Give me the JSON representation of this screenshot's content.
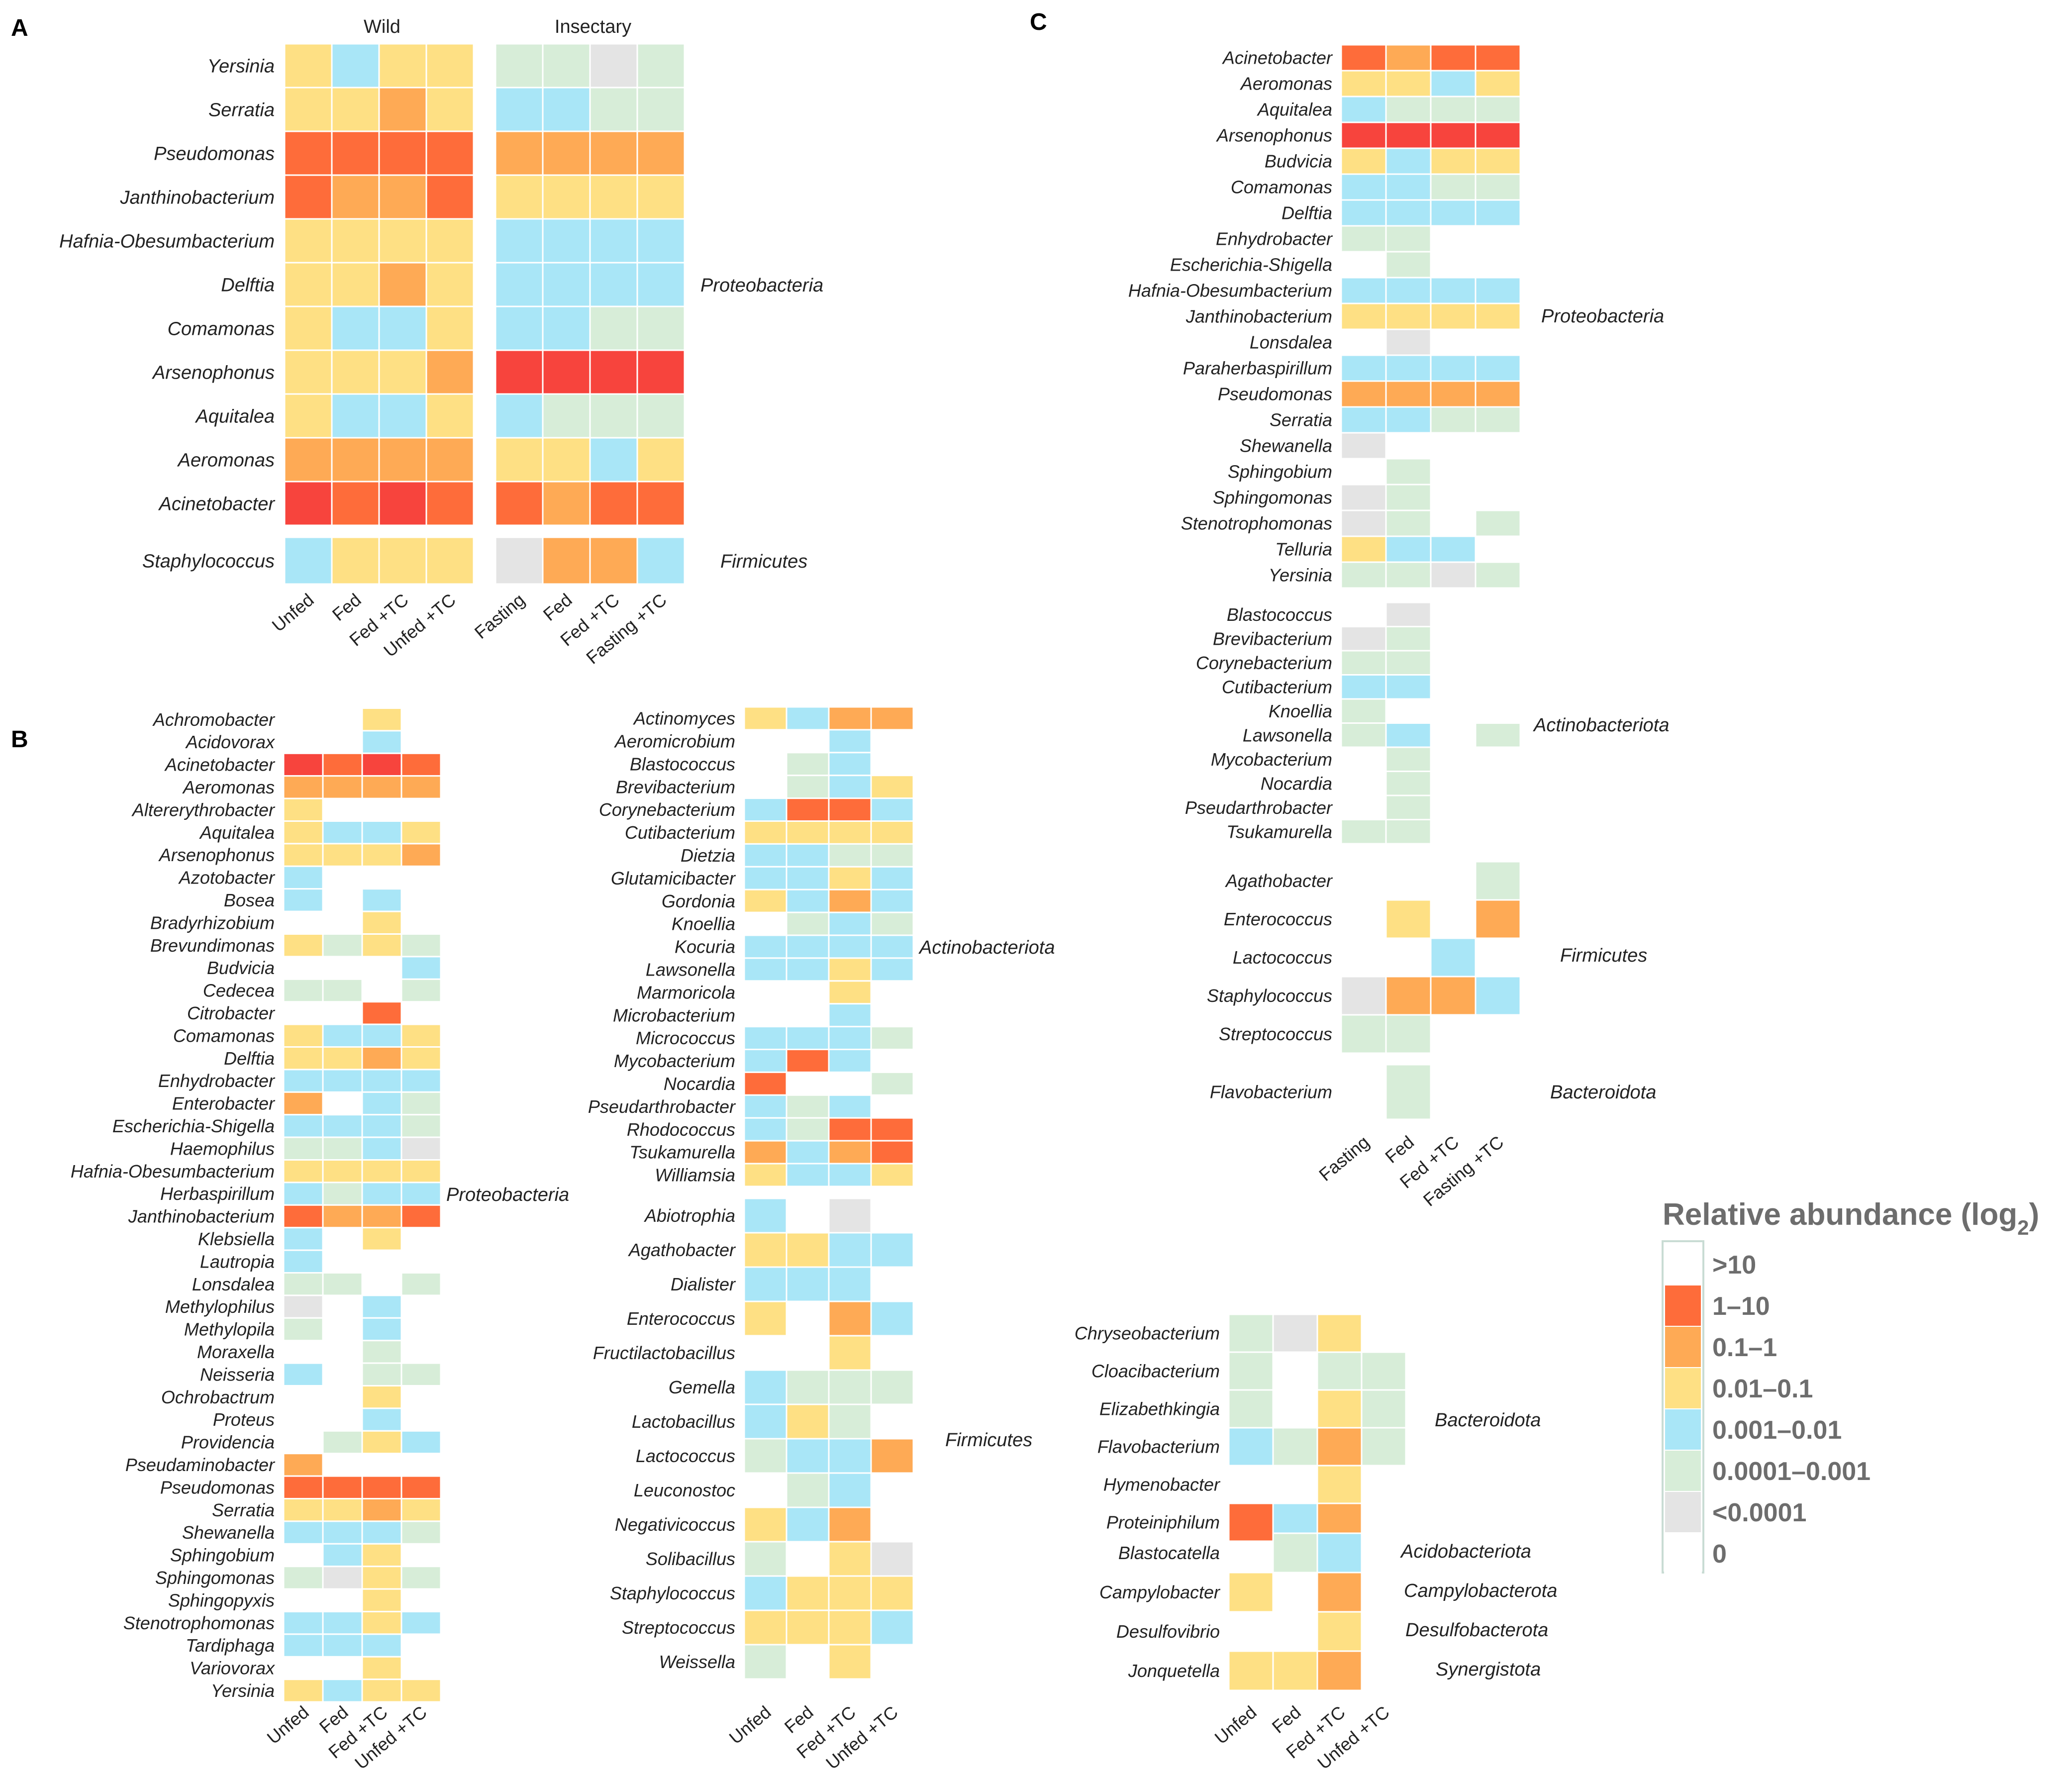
{
  "colors": {
    "gt10": "#ffffff",
    "c1_10": "#f7443d",
    "c01_1": "#fe6c3a",
    "c001_01": "#feaa55",
    "c0001_001": "#fee084",
    "c00001_0001": "#a9e6f7",
    "lt00001": "#d7edd8",
    "zero": "#e4e4e4",
    "empty": "#ffffff"
  },
  "chart_data": [
    {
      "panel": "A",
      "type": "heatmap",
      "groups": [
        "Wild",
        "Insectary"
      ],
      "columns": [
        [
          "Unfed",
          "Fed",
          "Fed +TC",
          "Unfed +TC"
        ],
        [
          "Fasting",
          "Fed",
          "Fed +TC",
          "Fasting +TC"
        ]
      ],
      "rows": [
        "Yersinia",
        "Serratia",
        "Pseudomonas",
        "Janthinobacterium",
        "Hafnia-Obesumbacterium",
        "Delftia",
        "Comamonas",
        "Arsenophonus",
        "Aquitalea",
        "Aeromonas",
        "Acinetobacter",
        "Staphylococcus"
      ],
      "row_groups": [
        {
          "label": "Proteobacteria",
          "rows": [
            0,
            10
          ]
        },
        {
          "label": "Firmicutes",
          "rows": [
            11,
            11
          ]
        }
      ],
      "values": [
        [
          4,
          5,
          4,
          4,
          6,
          6,
          7,
          6
        ],
        [
          4,
          4,
          3,
          4,
          5,
          5,
          6,
          6
        ],
        [
          2,
          2,
          2,
          2,
          3,
          3,
          3,
          3
        ],
        [
          2,
          3,
          3,
          2,
          4,
          4,
          4,
          4
        ],
        [
          4,
          4,
          4,
          4,
          5,
          5,
          5,
          5
        ],
        [
          4,
          4,
          3,
          4,
          5,
          5,
          5,
          5
        ],
        [
          4,
          5,
          5,
          4,
          5,
          5,
          6,
          6
        ],
        [
          4,
          4,
          4,
          3,
          1,
          1,
          1,
          1
        ],
        [
          4,
          5,
          5,
          4,
          5,
          6,
          6,
          6
        ],
        [
          3,
          3,
          3,
          3,
          4,
          4,
          5,
          4
        ],
        [
          1,
          2,
          1,
          2,
          2,
          3,
          2,
          2
        ],
        [
          5,
          4,
          4,
          4,
          7,
          3,
          3,
          5
        ]
      ]
    },
    {
      "panel": "B-left",
      "type": "heatmap",
      "columns": [
        "Unfed",
        "Fed",
        "Fed +TC",
        "Unfed +TC"
      ],
      "rows": [
        "Achromobacter",
        "Acidovorax",
        "Acinetobacter",
        "Aeromonas",
        "Altererythrobacter",
        "Aquitalea",
        "Arsenophonus",
        "Azotobacter",
        "Bosea",
        "Bradyrhizobium",
        "Brevundimonas",
        "Budvicia",
        "Cedecea",
        "Citrobacter",
        "Comamonas",
        "Delftia",
        "Enhydrobacter",
        "Enterobacter",
        "Escherichia-Shigella",
        "Haemophilus",
        "Hafnia-Obesumbacterium",
        "Herbaspirillum",
        "Janthinobacterium",
        "Klebsiella",
        "Lautropia",
        "Lonsdalea",
        "Methylophilus",
        "Methylopila",
        "Moraxella",
        "Neisseria",
        "Ochrobactrum",
        "Proteus",
        "Providencia",
        "Pseudaminobacter",
        "Pseudomonas",
        "Serratia",
        "Shewanella",
        "Sphingobium",
        "Sphingomonas",
        "Sphingopyxis",
        "Stenotrophomonas",
        "Tardiphaga",
        "Variovorax",
        "Yersinia"
      ],
      "row_groups": [
        {
          "label": "Proteobacteria",
          "rows": [
            0,
            43
          ]
        }
      ],
      "values": [
        [
          0,
          0,
          4,
          0
        ],
        [
          0,
          0,
          5,
          0
        ],
        [
          1,
          2,
          1,
          2
        ],
        [
          3,
          3,
          3,
          3
        ],
        [
          4,
          0,
          0,
          0
        ],
        [
          4,
          5,
          5,
          4
        ],
        [
          4,
          4,
          4,
          3
        ],
        [
          5,
          0,
          0,
          0
        ],
        [
          5,
          0,
          5,
          0
        ],
        [
          0,
          0,
          4,
          0
        ],
        [
          4,
          6,
          4,
          6
        ],
        [
          0,
          0,
          0,
          5
        ],
        [
          6,
          6,
          0,
          6
        ],
        [
          0,
          0,
          2,
          0
        ],
        [
          4,
          5,
          5,
          4
        ],
        [
          4,
          4,
          3,
          4
        ],
        [
          5,
          5,
          5,
          5
        ],
        [
          3,
          0,
          5,
          6
        ],
        [
          5,
          5,
          5,
          6
        ],
        [
          6,
          6,
          5,
          7
        ],
        [
          4,
          4,
          4,
          4
        ],
        [
          5,
          6,
          5,
          5
        ],
        [
          2,
          3,
          3,
          2
        ],
        [
          5,
          0,
          4,
          0
        ],
        [
          5,
          0,
          0,
          0
        ],
        [
          6,
          6,
          0,
          6
        ],
        [
          7,
          0,
          5,
          0
        ],
        [
          6,
          0,
          5,
          0
        ],
        [
          0,
          0,
          6,
          0
        ],
        [
          5,
          0,
          6,
          6
        ],
        [
          0,
          0,
          4,
          0
        ],
        [
          0,
          0,
          5,
          0
        ],
        [
          0,
          6,
          4,
          5
        ],
        [
          3,
          0,
          0,
          0
        ],
        [
          2,
          2,
          2,
          2
        ],
        [
          4,
          4,
          3,
          4
        ],
        [
          5,
          5,
          5,
          6
        ],
        [
          0,
          5,
          4,
          0
        ],
        [
          6,
          7,
          4,
          6
        ],
        [
          0,
          0,
          4,
          0
        ],
        [
          5,
          5,
          4,
          5
        ],
        [
          5,
          5,
          5,
          0
        ],
        [
          0,
          0,
          4,
          0
        ],
        [
          4,
          5,
          4,
          4
        ]
      ]
    },
    {
      "panel": "B-right",
      "type": "heatmap",
      "columns": [
        "Unfed",
        "Fed",
        "Fed +TC",
        "Unfed +TC"
      ],
      "rows": [
        "Actinomyces",
        "Aeromicrobium",
        "Blastococcus",
        "Brevibacterium",
        "Corynebacterium",
        "Cutibacterium",
        "Dietzia",
        "Glutamicibacter",
        "Gordonia",
        "Knoellia",
        "Kocuria",
        "Lawsonella",
        "Marmoricola",
        "Microbacterium",
        "Micrococcus",
        "Mycobacterium",
        "Nocardia",
        "Pseudarthrobacter",
        "Rhodococcus",
        "Tsukamurella",
        "Williamsia",
        "Abiotrophia",
        "Agathobacter",
        "Dialister",
        "Enterococcus",
        "Fructilactobacillus",
        "Gemella",
        "Lactobacillus",
        "Lactococcus",
        "Leuconostoc",
        "Negativicoccus",
        "Solibacillus",
        "Staphylococcus",
        "Streptococcus",
        "Weissella"
      ],
      "row_groups": [
        {
          "label": "Actinobacteriota",
          "rows": [
            0,
            20
          ]
        },
        {
          "label": "Firmicutes",
          "rows": [
            21,
            34
          ]
        }
      ],
      "values": [
        [
          4,
          5,
          3,
          3
        ],
        [
          0,
          0,
          5,
          0
        ],
        [
          0,
          6,
          5,
          0
        ],
        [
          0,
          6,
          5,
          4
        ],
        [
          5,
          2,
          2,
          5
        ],
        [
          4,
          4,
          4,
          4
        ],
        [
          5,
          5,
          6,
          6
        ],
        [
          5,
          5,
          4,
          5
        ],
        [
          4,
          5,
          3,
          5
        ],
        [
          0,
          6,
          5,
          6
        ],
        [
          5,
          5,
          5,
          5
        ],
        [
          5,
          5,
          4,
          5
        ],
        [
          0,
          0,
          4,
          0
        ],
        [
          0,
          0,
          5,
          0
        ],
        [
          5,
          5,
          5,
          6
        ],
        [
          5,
          2,
          5,
          0
        ],
        [
          2,
          0,
          0,
          6
        ],
        [
          5,
          6,
          5,
          0
        ],
        [
          5,
          6,
          2,
          2
        ],
        [
          3,
          5,
          3,
          2
        ],
        [
          4,
          5,
          5,
          4
        ],
        [
          5,
          0,
          7,
          0
        ],
        [
          4,
          4,
          5,
          5
        ],
        [
          5,
          5,
          5,
          0
        ],
        [
          4,
          0,
          3,
          5
        ],
        [
          0,
          0,
          4,
          0
        ],
        [
          5,
          6,
          6,
          6
        ],
        [
          5,
          4,
          6,
          0
        ],
        [
          6,
          5,
          5,
          3
        ],
        [
          0,
          6,
          5,
          0
        ],
        [
          4,
          5,
          3,
          0
        ],
        [
          6,
          0,
          4,
          7
        ],
        [
          5,
          4,
          4,
          4
        ],
        [
          4,
          4,
          4,
          5
        ],
        [
          6,
          0,
          4,
          0
        ]
      ]
    },
    {
      "panel": "C-top",
      "type": "heatmap",
      "columns": [
        "Fasting",
        "Fed",
        "Fed +TC",
        "Fasting +TC"
      ],
      "rows": [
        "Acinetobacter",
        "Aeromonas",
        "Aquitalea",
        "Arsenophonus",
        "Budvicia",
        "Comamonas",
        "Delftia",
        "Enhydrobacter",
        "Escherichia-Shigella",
        "Hafnia-Obesumbacterium",
        "Janthinobacterium",
        "Lonsdalea",
        "Paraherbaspirillum",
        "Pseudomonas",
        "Serratia",
        "Shewanella",
        "Sphingobium",
        "Sphingomonas",
        "Stenotrophomonas",
        "Telluria",
        "Yersinia",
        "Blastococcus",
        "Brevibacterium",
        "Corynebacterium",
        "Cutibacterium",
        "Knoellia",
        "Lawsonella",
        "Mycobacterium",
        "Nocardia",
        "Pseudarthrobacter",
        "Tsukamurella",
        "Agathobacter",
        "Enterococcus",
        "Lactococcus",
        "Staphylococcus",
        "Streptococcus",
        "Flavobacterium"
      ],
      "row_groups": [
        {
          "label": "Proteobacteria",
          "rows": [
            0,
            20
          ]
        },
        {
          "label": "Actinobacteriota",
          "rows": [
            21,
            30
          ]
        },
        {
          "label": "Firmicutes",
          "rows": [
            31,
            35
          ]
        },
        {
          "label": "Bacteroidota",
          "rows": [
            36,
            36
          ]
        }
      ],
      "values": [
        [
          2,
          3,
          2,
          2
        ],
        [
          4,
          4,
          5,
          4
        ],
        [
          5,
          6,
          6,
          6
        ],
        [
          1,
          1,
          1,
          1
        ],
        [
          4,
          5,
          4,
          4
        ],
        [
          5,
          5,
          6,
          6
        ],
        [
          5,
          5,
          5,
          5
        ],
        [
          6,
          6,
          0,
          0
        ],
        [
          0,
          6,
          0,
          0
        ],
        [
          5,
          5,
          5,
          5
        ],
        [
          4,
          4,
          4,
          4
        ],
        [
          0,
          7,
          0,
          0
        ],
        [
          5,
          5,
          5,
          5
        ],
        [
          3,
          3,
          3,
          3
        ],
        [
          5,
          5,
          6,
          6
        ],
        [
          7,
          0,
          0,
          0
        ],
        [
          0,
          6,
          0,
          0
        ],
        [
          7,
          6,
          0,
          0
        ],
        [
          7,
          6,
          0,
          6
        ],
        [
          4,
          5,
          5,
          0
        ],
        [
          6,
          6,
          7,
          6
        ],
        [
          0,
          7,
          0,
          0
        ],
        [
          7,
          6,
          0,
          0
        ],
        [
          6,
          6,
          0,
          0
        ],
        [
          5,
          5,
          0,
          0
        ],
        [
          6,
          0,
          0,
          0
        ],
        [
          6,
          5,
          0,
          6
        ],
        [
          0,
          6,
          0,
          0
        ],
        [
          0,
          6,
          0,
          0
        ],
        [
          0,
          6,
          0,
          0
        ],
        [
          6,
          6,
          0,
          0
        ],
        [
          0,
          0,
          0,
          6
        ],
        [
          0,
          4,
          0,
          3
        ],
        [
          0,
          0,
          5,
          0
        ],
        [
          7,
          3,
          3,
          5
        ],
        [
          6,
          6,
          0,
          0
        ],
        [
          0,
          6,
          0,
          0
        ]
      ]
    },
    {
      "panel": "C-bottom",
      "type": "heatmap",
      "columns": [
        "Unfed",
        "Fed",
        "Fed +TC",
        "Unfed +TC"
      ],
      "rows": [
        "Chryseobacterium",
        "Cloacibacterium",
        "Elizabethkingia",
        "Flavobacterium",
        "Hymenobacter",
        "Proteiniphilum",
        "Blastocatella",
        "Campylobacter",
        "Desulfovibrio",
        "Jonquetella"
      ],
      "row_groups": [
        {
          "label": "Bacteroidota",
          "rows": [
            0,
            5
          ]
        },
        {
          "label": "Acidobacteriota",
          "rows": [
            6,
            6
          ]
        },
        {
          "label": "Campylobacterota",
          "rows": [
            7,
            7
          ]
        },
        {
          "label": "Desulfobacterota",
          "rows": [
            8,
            8
          ]
        },
        {
          "label": "Synergistota",
          "rows": [
            9,
            9
          ]
        }
      ],
      "values": [
        [
          6,
          7,
          4,
          0
        ],
        [
          6,
          0,
          6,
          6
        ],
        [
          6,
          0,
          4,
          6
        ],
        [
          5,
          6,
          3,
          6
        ],
        [
          0,
          0,
          4,
          0
        ],
        [
          2,
          5,
          3,
          0
        ],
        [
          0,
          6,
          5,
          0
        ],
        [
          4,
          0,
          3,
          0
        ],
        [
          0,
          0,
          4,
          0
        ],
        [
          4,
          4,
          3,
          0
        ]
      ]
    }
  ],
  "panels": {
    "a": "A",
    "b": "B",
    "c": "C"
  },
  "headers": {
    "wild": "Wild",
    "insectary": "Insectary"
  },
  "legend": {
    "title": "Relative abundance (log",
    "title_sub": "2",
    "title_end": ")",
    "items": [
      {
        "label": ">10",
        "color": "#ffffff"
      },
      {
        "label": "1–10",
        "color": "#fe6c3a"
      },
      {
        "label": "0.1–1",
        "color": "#feaa55"
      },
      {
        "label": "0.01–0.1",
        "color": "#fee084"
      },
      {
        "label": "0.001–0.01",
        "color": "#a9e6f7"
      },
      {
        "label": "0.0001–0.001",
        "color": "#d7edd8"
      },
      {
        "label": "<0.0001",
        "color": "#e4e4e4"
      },
      {
        "label": "0",
        "color": "#ffffff"
      }
    ]
  }
}
